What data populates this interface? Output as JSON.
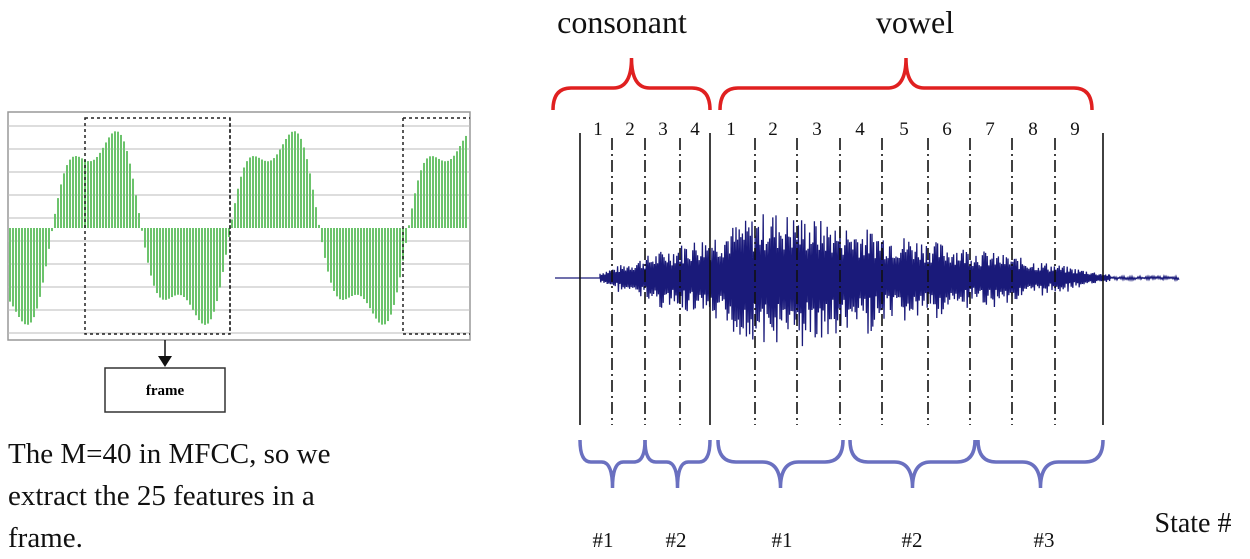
{
  "phonemes": {
    "consonant": "consonant",
    "vowel": "vowel"
  },
  "frame_numbers": {
    "consonant": [
      "1",
      "2",
      "3",
      "4"
    ],
    "vowel": [
      "1",
      "2",
      "3",
      "4",
      "5",
      "6",
      "7",
      "8",
      "9"
    ]
  },
  "frame_box": "frame",
  "description": [
    "The M=40 in MFCC, so we",
    "extract the 25 features in a",
    "frame."
  ],
  "state_labels": [
    "#1",
    "#2",
    "#1",
    "#2",
    "#3"
  ],
  "state_axis_label": "State #"
}
